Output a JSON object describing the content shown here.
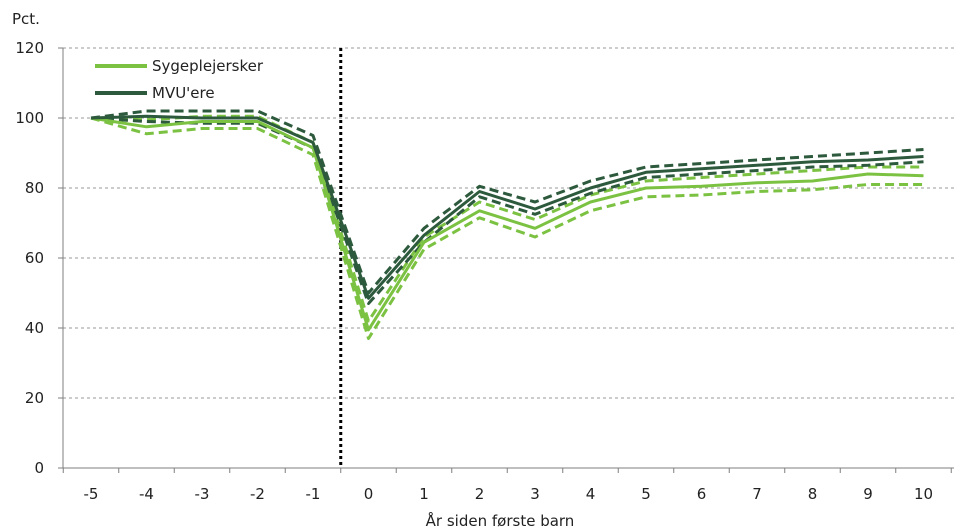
{
  "chart_data": {
    "type": "line",
    "ylabel": "Pct.",
    "xlabel": "År siden første barn",
    "ylim": [
      0,
      120
    ],
    "yticks": [
      0,
      20,
      40,
      60,
      80,
      100,
      120
    ],
    "x": [
      -5,
      -4,
      -3,
      -2,
      -1,
      0,
      1,
      2,
      3,
      4,
      5,
      6,
      7,
      8,
      9,
      10
    ],
    "xtick_labels": [
      "-5",
      "-4",
      "-3",
      "-2",
      "-1",
      "0",
      "1",
      "2",
      "3",
      "4",
      "5",
      "6",
      "7",
      "8",
      "9",
      "10"
    ],
    "grid": true,
    "legend_position": "top-left",
    "reference_line_x": -0.5,
    "series": [
      {
        "name": "Sygeplejersker",
        "color": "#7cc242",
        "style": "solid",
        "values": [
          100,
          97.5,
          99,
          99,
          91.5,
          39.5,
          64.5,
          73.5,
          68.5,
          76,
          80,
          80.5,
          81.5,
          82,
          84,
          83.5
        ]
      },
      {
        "color": "#7cc242",
        "style": "dashed",
        "values": [
          100,
          99.5,
          100.5,
          100.5,
          93,
          42,
          66,
          76,
          71,
          78,
          82,
          83,
          84,
          85,
          86,
          86
        ]
      },
      {
        "color": "#7cc242",
        "style": "dashed",
        "values": [
          100,
          95.5,
          97,
          97,
          89.5,
          37,
          62.5,
          71.5,
          66,
          73.5,
          77.5,
          78,
          79,
          79.5,
          81,
          81
        ]
      },
      {
        "name": "MVU'ere",
        "color": "#2d5a3d",
        "style": "solid",
        "values": [
          100,
          100.5,
          100,
          100,
          93,
          48.5,
          66.5,
          79,
          74,
          80,
          84.5,
          85.5,
          86.5,
          87.5,
          88,
          89
        ]
      },
      {
        "color": "#2d5a3d",
        "style": "dashed",
        "values": [
          100,
          102,
          102,
          102,
          95,
          50,
          68.5,
          80.5,
          76,
          82,
          86,
          87,
          88,
          89,
          90,
          91
        ]
      },
      {
        "color": "#2d5a3d",
        "style": "dashed",
        "values": [
          100,
          99,
          98.5,
          98.5,
          91.5,
          47,
          64.5,
          77.5,
          72.5,
          78.5,
          83,
          84,
          85,
          86,
          86.5,
          87.5
        ]
      }
    ]
  }
}
